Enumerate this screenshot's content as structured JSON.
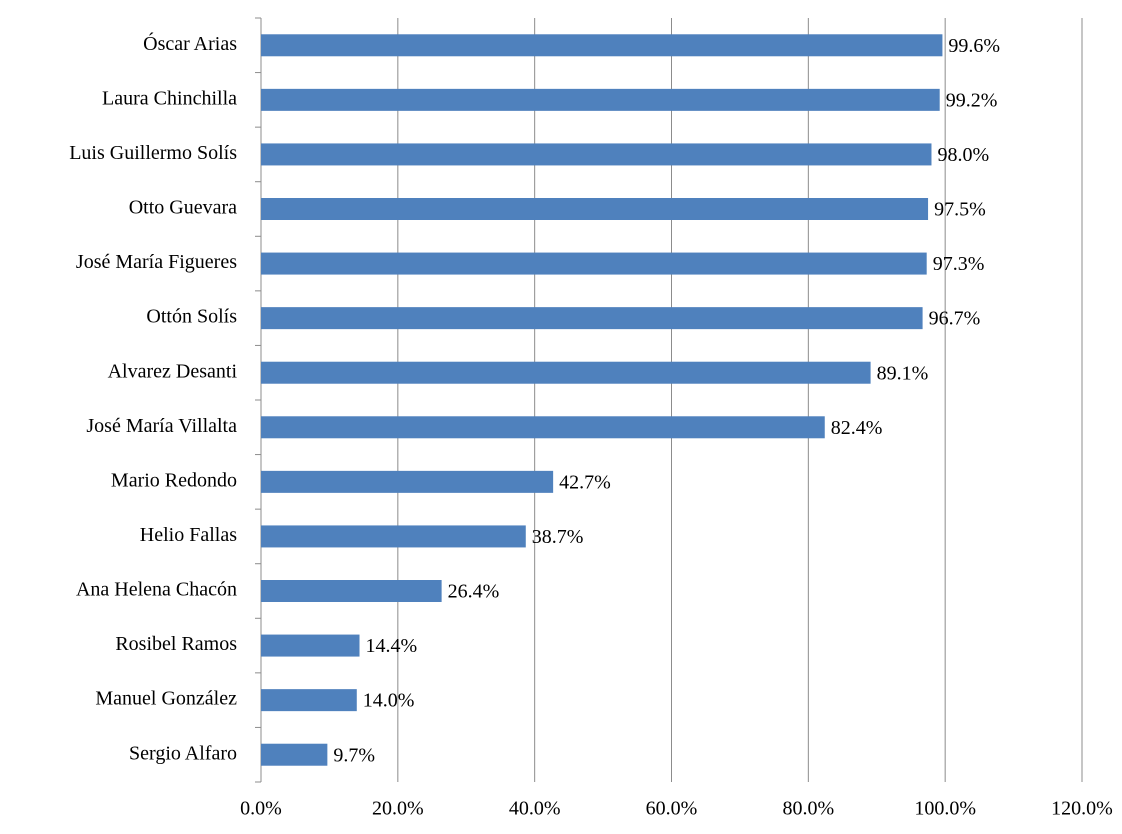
{
  "chart_data": {
    "type": "bar",
    "horizontal": true,
    "categories": [
      "Óscar Arias",
      "Laura Chinchilla",
      "Luis Guillermo Solís",
      "Otto Guevara",
      "José María Figueres",
      "Ottón Solís",
      "Alvarez Desanti",
      "José María Villalta",
      "Mario Redondo",
      "Helio Fallas",
      "Ana Helena Chacón",
      "Rosibel Ramos",
      "Manuel González",
      "Sergio Alfaro"
    ],
    "values": [
      99.6,
      99.2,
      98.0,
      97.5,
      97.3,
      96.7,
      89.1,
      82.4,
      42.7,
      38.7,
      26.4,
      14.4,
      14.0,
      9.7
    ],
    "value_labels": [
      "99.6%",
      "99.2%",
      "98.0%",
      "97.5%",
      "97.3%",
      "96.7%",
      "89.1%",
      "82.4%",
      "42.7%",
      "38.7%",
      "26.4%",
      "14.4%",
      "14.0%",
      "9.7%"
    ],
    "color": "#4f81bd",
    "xlim": [
      0,
      120
    ],
    "xticks": [
      {
        "value": 0,
        "label": "0.0%"
      },
      {
        "value": 20,
        "label": "20.0%"
      },
      {
        "value": 40,
        "label": "40.0%"
      },
      {
        "value": 60,
        "label": "60.0%"
      },
      {
        "value": 80,
        "label": "80.0%"
      },
      {
        "value": 100,
        "label": "100.0%"
      },
      {
        "value": 120,
        "label": "120.0%"
      }
    ],
    "grid": true
  }
}
